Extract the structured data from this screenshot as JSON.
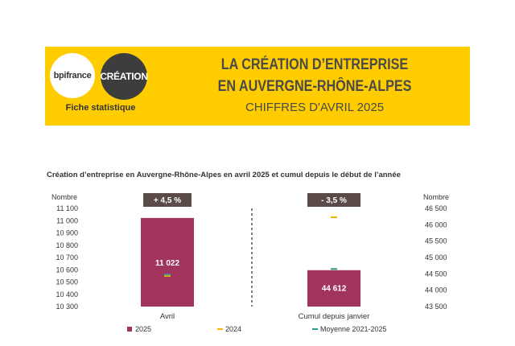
{
  "header": {
    "logo_left": "bpifrance",
    "logo_right": "CRÉATION",
    "fiche": "Fiche statistique",
    "title_line1": "LA CRÉATION D’ENTREPRISE",
    "title_line2": "EN AUVERGNE-RHÔNE-ALPES",
    "subtitle": "CHIFFRES D'AVRIL 2025",
    "banner_color": "#ffcc00"
  },
  "chart_data": {
    "type": "bar",
    "title": "Création d’entreprise en Auvergne-Rhône-Alpes en avril 2025 et cumul depuis le début de l’année",
    "panels": [
      {
        "category": "Avril",
        "axis_side": "left",
        "ylabel": "Nombre",
        "ylim": [
          10300,
          11100
        ],
        "yticks": [
          10300,
          10400,
          10500,
          10600,
          10700,
          10800,
          10900,
          11000,
          11100
        ],
        "ytick_labels": [
          "10 300",
          "10 400",
          "10 500",
          "10 600",
          "10 700",
          "10 800",
          "10 900",
          "11 000",
          "11 100"
        ],
        "value_2025": 11022,
        "value_2025_label": "11 022",
        "value_2024": 10550,
        "value_avg": 10560,
        "change_label": "+ 4,5 %"
      },
      {
        "category": "Cumul depuis janvier",
        "axis_side": "right",
        "ylabel": "Nombre",
        "ylim": [
          43500,
          46500
        ],
        "yticks": [
          43500,
          44000,
          44500,
          45000,
          45500,
          46000,
          46500
        ],
        "ytick_labels": [
          "43 500",
          "44 000",
          "44 500",
          "45 000",
          "45 500",
          "46 000",
          "46 500"
        ],
        "value_2025": 44612,
        "value_2025_label": "44 612",
        "value_2024": 46230,
        "value_avg": 44650,
        "change_label": "- 3,5 %"
      }
    ],
    "legend": [
      "2025",
      "2024",
      "Moyenne 2021-2025"
    ],
    "legend_placement": "bottom",
    "colors": {
      "bar_2025": "#a0345c",
      "marker_2024": "#f5b800",
      "marker_avg": "#2a9d8f",
      "badge": "#5a4a48",
      "divider": "#555555"
    }
  }
}
